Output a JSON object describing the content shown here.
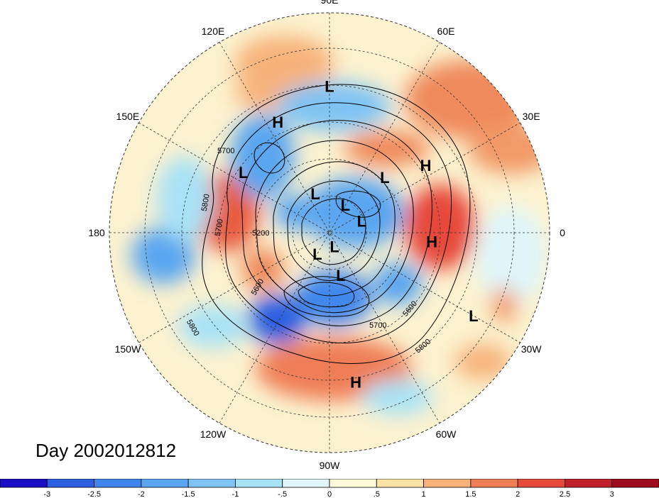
{
  "title": "Day 2002012812",
  "longitude_labels": [
    {
      "text": "90E",
      "lon": 90
    },
    {
      "text": "60E",
      "lon": 60
    },
    {
      "text": "30E",
      "lon": 30
    },
    {
      "text": "0",
      "lon": 0
    },
    {
      "text": "30W",
      "lon": -30
    },
    {
      "text": "60W",
      "lon": -60
    },
    {
      "text": "90W",
      "lon": -90
    },
    {
      "text": "120W",
      "lon": -120
    },
    {
      "text": "150W",
      "lon": -150
    },
    {
      "text": "180",
      "lon": 180
    },
    {
      "text": "150E",
      "lon": 150
    },
    {
      "text": "120E",
      "lon": 120
    }
  ],
  "pressure_centers": [
    {
      "type": "L",
      "lon": 90,
      "lat": 30
    },
    {
      "type": "H",
      "lon": 115,
      "lat": 40
    },
    {
      "type": "H",
      "lon": 35,
      "lat": 42
    },
    {
      "type": "L",
      "lon": 45,
      "lat": 58
    },
    {
      "type": "L",
      "lon": 145,
      "lat": 47
    },
    {
      "type": "L",
      "lon": 110,
      "lat": 73
    },
    {
      "type": "L",
      "lon": 60,
      "lat": 77
    },
    {
      "type": "L",
      "lon": 20,
      "lat": 76
    },
    {
      "type": "H",
      "lon": -5,
      "lat": 48
    },
    {
      "type": "L",
      "lon": -120,
      "lat": 80
    },
    {
      "type": "L",
      "lon": -70,
      "lat": 84
    },
    {
      "type": "L",
      "lon": -75,
      "lat": 72
    },
    {
      "type": "H",
      "lon": -80,
      "lat": 28
    },
    {
      "type": "L",
      "lon": -30,
      "lat": 22
    }
  ],
  "contour_labels": [
    "5700",
    "5800",
    "5700",
    "5200",
    "5600",
    "5800",
    "5700",
    "5600",
    "5800"
  ],
  "colorbar": {
    "ticks": [
      "-3",
      "-2.5",
      "-2",
      "-1.5",
      "-1",
      "-.5",
      "0",
      ".5",
      "1",
      "1.5",
      "2",
      "2.5",
      "3"
    ],
    "colors": [
      "#1a0fc4",
      "#2b5fe0",
      "#3f86ec",
      "#5aa6f0",
      "#7ec3f4",
      "#a8e2f6",
      "#dff5fa",
      "#fffbd9",
      "#fbe4a5",
      "#f7b27a",
      "#ef7e56",
      "#e64a3b",
      "#c0202a",
      "#9e0d1e"
    ]
  }
}
